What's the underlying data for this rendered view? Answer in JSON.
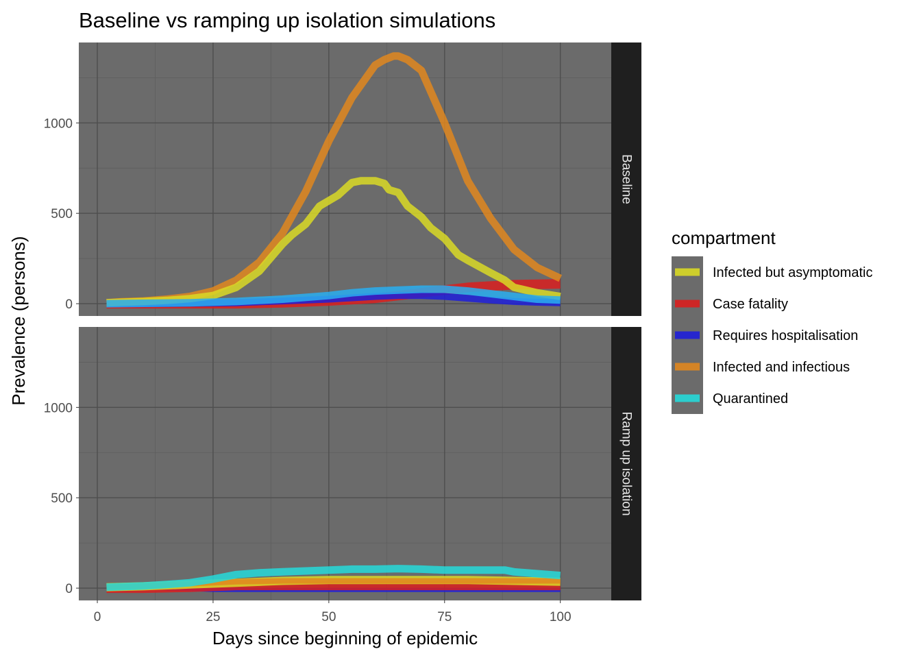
{
  "chart_data": {
    "type": "line",
    "title": "Baseline vs ramping up isolation simulations",
    "xlabel": "Days since beginning of epidemic",
    "ylabel": "Prevalence (persons)",
    "xlim": [
      -4,
      111
    ],
    "ylim": [
      -68,
      1445
    ],
    "x_ticks": [
      0,
      25,
      50,
      75,
      100
    ],
    "y_ticks": [
      0,
      500,
      1000
    ],
    "grid": true,
    "legend": {
      "title": "compartment",
      "placement": "right"
    },
    "series_legend": [
      {
        "name": "Infected but asymptomatic",
        "color": "#d9d926"
      },
      {
        "name": "Case fatality",
        "color": "#d91f1f"
      },
      {
        "name": "Requires hospitalisation",
        "color": "#1f1fd9"
      },
      {
        "name": "Infected and infectious",
        "color": "#e0871f"
      },
      {
        "name": "Quarantined",
        "color": "#26d9d9"
      }
    ],
    "panels": [
      {
        "label": "Baseline",
        "series": [
          {
            "name": "Case fatality",
            "color": "#d91f1f",
            "width": 14,
            "x": [
              2,
              10,
              20,
              30,
              40,
              50,
              60,
              70,
              80,
              90,
              100
            ],
            "y": [
              0,
              0,
              0,
              0,
              5,
              15,
              30,
              60,
              90,
              105,
              110
            ]
          },
          {
            "name": "Requires hospitalisation",
            "color": "#1f1fd9",
            "width": 10,
            "x": [
              2,
              10,
              20,
              30,
              40,
              50,
              60,
              65,
              70,
              75,
              80,
              85,
              90,
              95,
              100
            ],
            "y": [
              0,
              0,
              2,
              5,
              15,
              25,
              40,
              45,
              45,
              40,
              30,
              20,
              12,
              8,
              5
            ]
          },
          {
            "name": "Infected and infectious",
            "color": "#e0871f",
            "width": 11,
            "x": [
              2,
              5,
              10,
              15,
              20,
              25,
              30,
              35,
              40,
              45,
              50,
              55,
              60,
              62,
              64,
              65,
              67,
              70,
              75,
              80,
              85,
              90,
              95,
              100
            ],
            "y": [
              5,
              10,
              15,
              25,
              40,
              70,
              130,
              230,
              390,
              620,
              900,
              1140,
              1320,
              1350,
              1370,
              1370,
              1350,
              1290,
              1000,
              680,
              470,
              300,
              200,
              140
            ]
          },
          {
            "name": "Infected but asymptomatic",
            "color": "#d9d926",
            "width": 11,
            "x": [
              2,
              5,
              10,
              15,
              20,
              25,
              30,
              35,
              40,
              42,
              45,
              48,
              50,
              52,
              55,
              57,
              60,
              62,
              63,
              65,
              67,
              70,
              72,
              75,
              78,
              80,
              85,
              88,
              90,
              95,
              100
            ],
            "y": [
              5,
              8,
              12,
              18,
              28,
              45,
              90,
              180,
              330,
              380,
              440,
              540,
              570,
              600,
              670,
              680,
              680,
              665,
              630,
              615,
              540,
              480,
              420,
              360,
              270,
              240,
              170,
              130,
              90,
              60,
              40
            ]
          },
          {
            "name": "Quarantined",
            "color": "#29aef0",
            "width": 11,
            "x": [
              2,
              10,
              20,
              30,
              40,
              50,
              55,
              60,
              65,
              70,
              75,
              80,
              85,
              90,
              95,
              100
            ],
            "y": [
              0,
              2,
              5,
              12,
              25,
              45,
              60,
              70,
              75,
              80,
              80,
              70,
              55,
              40,
              25,
              20
            ]
          }
        ]
      },
      {
        "label": "Ramp up isolation",
        "series": [
          {
            "name": "Requires hospitalisation",
            "color": "#1f1fd9",
            "width": 6,
            "x": [
              2,
              15,
              25,
              40,
              50,
              60,
              70,
              80,
              90,
              100
            ],
            "y": [
              0,
              0,
              -10,
              -10,
              -10,
              -10,
              -10,
              -10,
              -10,
              -10
            ]
          },
          {
            "name": "Case fatality",
            "color": "#d91f1f",
            "width": 14,
            "x": [
              2,
              10,
              20,
              25,
              30,
              40,
              50,
              60,
              70,
              80,
              90,
              100
            ],
            "y": [
              0,
              0,
              5,
              10,
              15,
              15,
              15,
              15,
              15,
              15,
              15,
              15
            ]
          },
          {
            "name": "Infected but asymptomatic",
            "color": "#d9d926",
            "width": 12,
            "x": [
              2,
              10,
              20,
              30,
              40,
              50,
              60,
              70,
              80,
              90,
              100
            ],
            "y": [
              5,
              10,
              20,
              30,
              40,
              45,
              45,
              45,
              45,
              40,
              35
            ]
          },
          {
            "name": "Infected and infectious",
            "color": "#e0871f",
            "width": 8,
            "x": [
              2,
              10,
              20,
              25,
              30,
              40,
              50,
              60,
              70,
              80,
              90,
              100
            ],
            "y": [
              5,
              12,
              25,
              30,
              35,
              40,
              40,
              40,
              40,
              40,
              40,
              40
            ]
          },
          {
            "name": "Quarantined",
            "color": "#26d9d9",
            "width": 11,
            "x": [
              2,
              5,
              10,
              15,
              20,
              25,
              30,
              35,
              40,
              45,
              50,
              55,
              60,
              65,
              70,
              75,
              80,
              85,
              88,
              90,
              95,
              100
            ],
            "y": [
              5,
              8,
              12,
              20,
              30,
              50,
              75,
              85,
              90,
              95,
              100,
              105,
              105,
              108,
              105,
              100,
              100,
              100,
              100,
              90,
              80,
              70
            ]
          }
        ]
      }
    ]
  }
}
